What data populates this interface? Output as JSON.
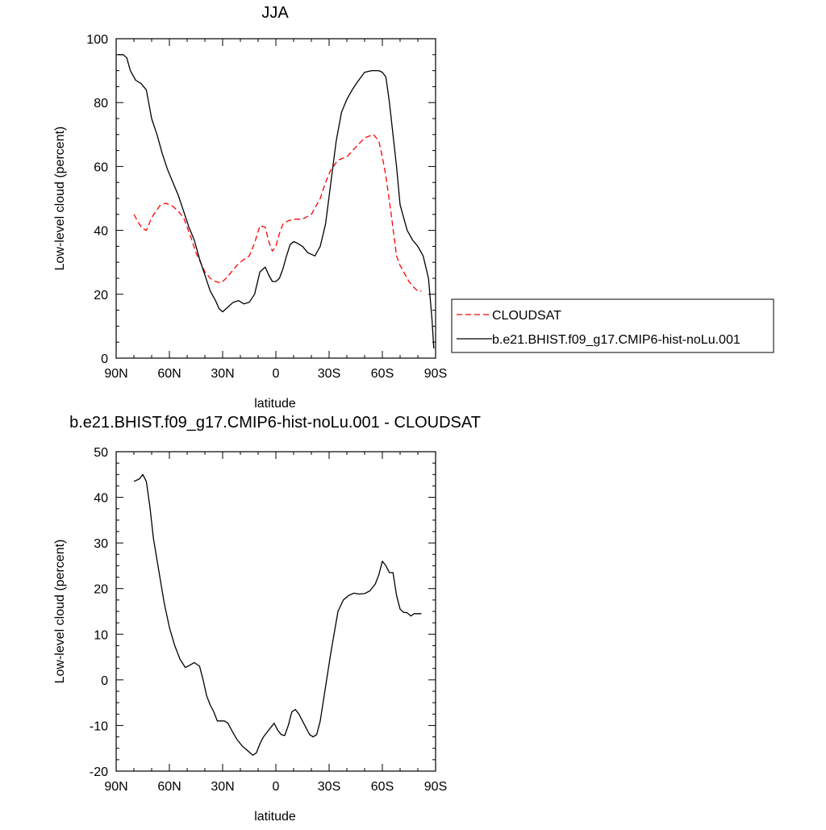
{
  "chart_data": [
    {
      "type": "line",
      "title": "JJA",
      "xlabel": "latitude",
      "ylabel": "Low-level cloud (percent)",
      "xlim": [
        90,
        -90
      ],
      "ylim": [
        0,
        100
      ],
      "x_ticks": [
        90,
        60,
        30,
        0,
        -30,
        -60,
        -90
      ],
      "x_tick_labels": [
        "90N",
        "60N",
        "30N",
        "0",
        "30S",
        "60S",
        "90S"
      ],
      "y_ticks": [
        0,
        20,
        40,
        60,
        80,
        100
      ],
      "y_tick_labels": [
        "0",
        "20",
        "40",
        "60",
        "80",
        "100"
      ],
      "grid": false,
      "legend": "right",
      "series": [
        {
          "name": "CLOUDSAT",
          "color": "#ff0000",
          "dash": "dashed",
          "x": [
            80,
            77,
            75,
            73,
            70,
            65,
            62,
            58,
            55,
            52,
            48,
            45,
            40,
            37,
            34,
            31,
            28,
            25,
            22,
            19,
            15,
            12,
            9,
            6,
            4,
            2,
            0,
            -2,
            -4,
            -7,
            -10,
            -15,
            -20,
            -25,
            -28,
            -31,
            -35,
            -40,
            -45,
            -50,
            -55,
            -58,
            -60,
            -62,
            -65,
            -68,
            -70,
            -73,
            -75,
            -78,
            -80,
            -82
          ],
          "y": [
            45,
            42,
            40.5,
            40,
            44,
            48,
            48.5,
            47.5,
            46,
            44,
            38,
            33,
            27,
            25,
            24,
            23.5,
            25,
            27,
            29,
            30.5,
            32,
            36,
            41.5,
            41,
            36.5,
            33.5,
            35,
            39,
            42,
            43,
            43.5,
            43.5,
            45,
            50,
            55,
            59,
            62,
            63,
            66,
            69,
            70,
            68,
            63,
            57,
            45,
            32,
            29,
            26,
            24,
            22,
            21,
            21
          ]
        },
        {
          "name": "b.e21.BHIST.f09_g17.CMIP6-hist-noLu.001",
          "color": "#000000",
          "dash": "solid",
          "x": [
            89,
            86,
            84,
            82,
            79,
            76,
            73,
            70,
            67,
            64,
            61,
            58,
            55,
            52,
            49,
            46,
            43,
            40,
            37,
            34,
            32,
            30,
            27,
            24,
            21,
            18,
            15,
            12,
            9,
            6,
            4,
            2,
            0,
            -2,
            -4,
            -6,
            -8,
            -10,
            -12,
            -15,
            -18,
            -22,
            -25,
            -28,
            -31,
            -34,
            -37,
            -40,
            -43,
            -46,
            -50,
            -54,
            -58,
            -60,
            -62,
            -64,
            -66,
            -68,
            -70,
            -72,
            -74,
            -77,
            -80,
            -83,
            -86,
            -88,
            -89
          ],
          "y": [
            95,
            95,
            94,
            90,
            87,
            86,
            84,
            75,
            70,
            64,
            59,
            55,
            51,
            46,
            41,
            37,
            31,
            26,
            21,
            18,
            15.5,
            14.5,
            16,
            17.5,
            18,
            17,
            17.5,
            20,
            27,
            28.5,
            26,
            24,
            24,
            25,
            28,
            32,
            35.5,
            36.5,
            36,
            35,
            33,
            32,
            35,
            42,
            55,
            68,
            77,
            81,
            84,
            86.5,
            89.5,
            90,
            90,
            89.5,
            88,
            80,
            70,
            60,
            48,
            44,
            40,
            37,
            35,
            32,
            25,
            12,
            3
          ]
        }
      ]
    },
    {
      "type": "line",
      "title": "b.e21.BHIST.f09_g17.CMIP6-hist-noLu.001 - CLOUDSAT",
      "xlabel": "latitude",
      "ylabel": "Low-level cloud (percent)",
      "xlim": [
        90,
        -90
      ],
      "ylim": [
        -20,
        50
      ],
      "x_ticks": [
        90,
        60,
        30,
        0,
        -30,
        -60,
        -90
      ],
      "x_tick_labels": [
        "90N",
        "60N",
        "30N",
        "0",
        "30S",
        "60S",
        "90S"
      ],
      "y_ticks": [
        -20,
        -10,
        0,
        10,
        20,
        30,
        40,
        50
      ],
      "y_tick_labels": [
        "-20",
        "-10",
        "0",
        "10",
        "20",
        "30",
        "40",
        "50"
      ],
      "grid": false,
      "series": [
        {
          "color": "#000000",
          "dash": "solid",
          "x": [
            80,
            77,
            75,
            73,
            71,
            69,
            66,
            63,
            60,
            57,
            54,
            51,
            49,
            46,
            43,
            41,
            39,
            37,
            35,
            33,
            31,
            29,
            27,
            25,
            22,
            19,
            16,
            13,
            11,
            9,
            7,
            5,
            3,
            1,
            -1,
            -3,
            -5,
            -7,
            -9,
            -11,
            -13,
            -15,
            -17,
            -19,
            -21,
            -23,
            -25,
            -27,
            -29,
            -31,
            -33,
            -35,
            -38,
            -41,
            -44,
            -47,
            -50,
            -53,
            -56,
            -58,
            -60,
            -62,
            -64,
            -66,
            -68,
            -70,
            -72,
            -74,
            -76,
            -78,
            -80,
            -82
          ],
          "y": [
            43.5,
            44,
            45,
            43.5,
            38,
            31,
            24,
            17,
            11.5,
            7.5,
            4.5,
            2.7,
            3.1,
            3.8,
            3,
            0,
            -3.5,
            -5.5,
            -7,
            -9,
            -9,
            -9,
            -9.5,
            -11,
            -13,
            -14.5,
            -15.5,
            -16.5,
            -16,
            -14,
            -12.5,
            -11.5,
            -10.5,
            -9.5,
            -11,
            -12,
            -12.2,
            -10,
            -7,
            -6.5,
            -7.5,
            -9,
            -10.5,
            -12,
            -12.5,
            -12,
            -9,
            -4,
            1,
            6,
            10.5,
            15,
            17.5,
            18.5,
            19,
            18.8,
            18.9,
            19.5,
            21,
            23,
            26,
            25,
            23.5,
            23.5,
            18.5,
            15.5,
            14.8,
            14.7,
            14,
            14.5,
            14.5,
            14.5
          ]
        }
      ]
    }
  ]
}
